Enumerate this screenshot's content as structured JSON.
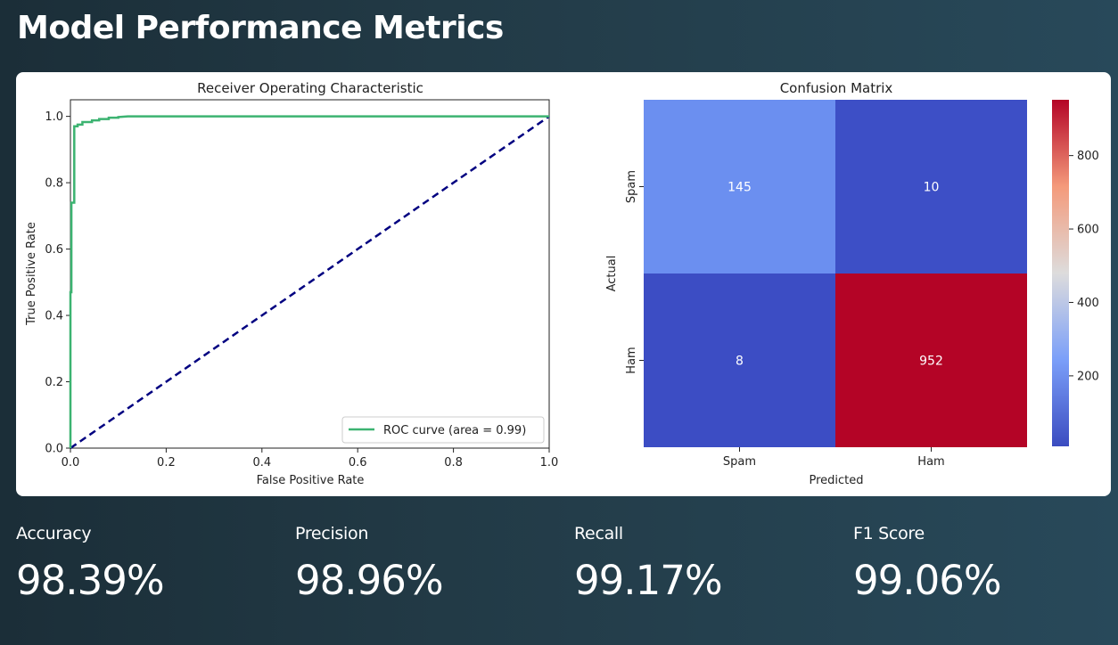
{
  "header": {
    "title": "Model Performance Metrics"
  },
  "metrics": [
    {
      "label": "Accuracy",
      "value": "98.39%"
    },
    {
      "label": "Precision",
      "value": "98.96%"
    },
    {
      "label": "Recall",
      "value": "99.17%"
    },
    {
      "label": "F1 Score",
      "value": "99.06%"
    }
  ],
  "chart_data": [
    {
      "type": "line",
      "title": "Receiver Operating Characteristic",
      "xlabel": "False Positive Rate",
      "ylabel": "True Positive Rate",
      "xlim": [
        0.0,
        1.0
      ],
      "ylim": [
        0.0,
        1.05
      ],
      "xticks": [
        "0.0",
        "0.2",
        "0.4",
        "0.6",
        "0.8",
        "1.0"
      ],
      "yticks": [
        "0.0",
        "0.2",
        "0.4",
        "0.6",
        "0.8",
        "1.0"
      ],
      "legend_position": "bottom-right",
      "grid": false,
      "series": [
        {
          "name": "ROC curve (area = 0.99)",
          "color": "#3cb371",
          "style": "solid",
          "x": [
            0.0,
            0.0,
            0.002,
            0.002,
            0.008,
            0.008,
            0.015,
            0.015,
            0.025,
            0.025,
            0.045,
            0.045,
            0.06,
            0.06,
            0.08,
            0.08,
            0.1,
            0.1,
            0.12,
            1.0
          ],
          "y": [
            0.0,
            0.47,
            0.47,
            0.74,
            0.74,
            0.97,
            0.97,
            0.975,
            0.975,
            0.983,
            0.983,
            0.988,
            0.988,
            0.992,
            0.992,
            0.996,
            0.996,
            0.998,
            1.0,
            1.0
          ]
        },
        {
          "name": "",
          "color": "#000080",
          "style": "dashed",
          "x": [
            0.0,
            1.0
          ],
          "y": [
            0.0,
            1.0
          ]
        }
      ]
    },
    {
      "type": "heatmap",
      "title": "Confusion Matrix",
      "xlabel": "Predicted",
      "ylabel": "Actual",
      "x_categories": [
        "Spam",
        "Ham"
      ],
      "y_categories": [
        "Spam",
        "Ham"
      ],
      "values": [
        [
          145,
          10
        ],
        [
          8,
          952
        ]
      ],
      "cell_colors": [
        [
          "#6b8ff0",
          "#3d4fc6"
        ],
        [
          "#3c4dc4",
          "#b40426"
        ]
      ],
      "colorbar": {
        "min": 8,
        "max": 952,
        "ticks": [
          "200",
          "400",
          "600",
          "800"
        ]
      }
    }
  ]
}
